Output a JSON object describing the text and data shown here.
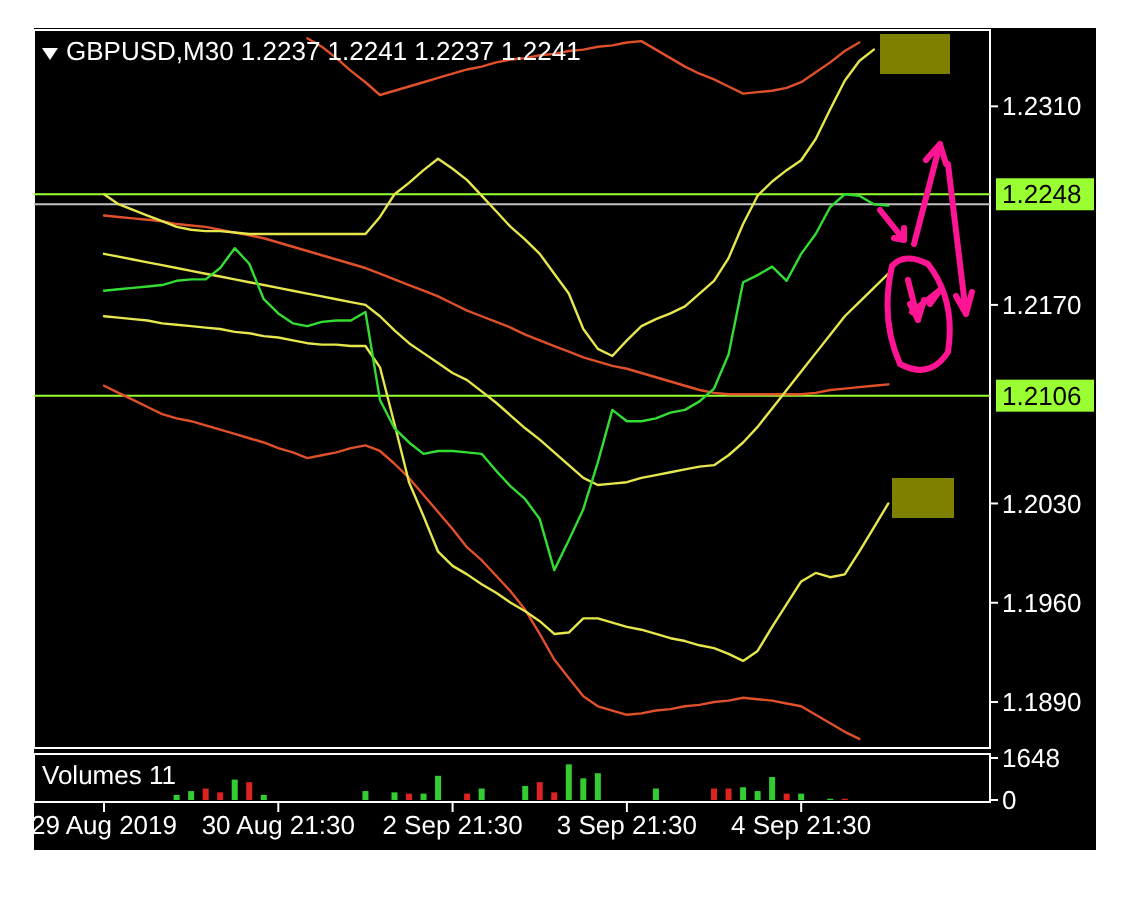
{
  "chart_data": [
    {
      "type": "line",
      "title": "GBPUSD,M30  1.2237 1.2241 1.2237 1.2241",
      "ylim": [
        1.1859,
        1.2361
      ],
      "tick_labels": "y",
      "categories": [
        null,
        null,
        null,
        null,
        null,
        null,
        null,
        null,
        null,
        null,
        null,
        null,
        null,
        null,
        null,
        null,
        null,
        null,
        null,
        null,
        null,
        null,
        null,
        null,
        null,
        null,
        null,
        null,
        null,
        null,
        null,
        null,
        null,
        null,
        null,
        null,
        null,
        null,
        null,
        null,
        null,
        null,
        null,
        null,
        null,
        null,
        null,
        null,
        null,
        null,
        null,
        null,
        null,
        null,
        null,
        null,
        null,
        null,
        null,
        null,
        null,
        null
      ],
      "yticks": [
        {
          "value": 1.231,
          "label": "1.2310"
        },
        {
          "value": 1.217,
          "label": "1.2170"
        },
        {
          "value": 1.203,
          "label": "1.2030"
        },
        {
          "value": 1.196,
          "label": "1.1960"
        },
        {
          "value": 1.189,
          "label": "1.1890"
        }
      ],
      "ref_lines": [
        {
          "axis": "y",
          "value": 1.2248,
          "label": "1.2248",
          "color": "#99ff33"
        },
        {
          "axis": "y",
          "value": 1.2106,
          "label": "1.2106",
          "color": "#99ff33"
        },
        {
          "axis": "y",
          "value": 1.2241,
          "label": null,
          "color": "#c0c0c0"
        }
      ],
      "series": [
        {
          "color": "#e0502a",
          "values": [
            null,
            null,
            null,
            null,
            null,
            null,
            null,
            null,
            null,
            null,
            null,
            null,
            null,
            null,
            1.2358,
            1.2352,
            1.2344,
            1.2335,
            1.2327,
            1.2318,
            1.2321,
            1.2324,
            1.2327,
            1.233,
            1.2333,
            1.2336,
            1.2338,
            1.2341,
            1.2343,
            1.2344,
            1.2346,
            1.2347,
            1.2349,
            1.235,
            1.2352,
            1.2353,
            1.2355,
            1.2356,
            1.235,
            1.2344,
            1.2338,
            1.2333,
            1.2329,
            1.2324,
            1.2319,
            1.232,
            1.2321,
            1.2323,
            1.2327,
            1.2334,
            1.2341,
            1.2349,
            1.2355,
            null,
            null,
            null,
            null,
            null,
            null,
            null,
            null,
            null
          ]
        },
        {
          "color": "#e0502a",
          "values": [
            1.2233,
            1.2232,
            1.2231,
            1.223,
            1.2229,
            1.2227,
            1.2226,
            1.2225,
            1.2223,
            1.2221,
            1.2219,
            1.2217,
            1.2214,
            1.2211,
            1.2208,
            1.2205,
            1.2202,
            1.2199,
            1.2196,
            1.2192,
            1.2188,
            1.2184,
            1.218,
            1.2176,
            1.2171,
            1.2166,
            1.2162,
            1.2158,
            1.2154,
            1.2149,
            1.2145,
            1.2141,
            1.2137,
            1.2133,
            1.213,
            1.2127,
            1.2125,
            1.2122,
            1.2119,
            1.2116,
            1.2113,
            1.211,
            1.2108,
            1.2107,
            1.2107,
            1.2107,
            1.2107,
            1.2107,
            1.2107,
            1.2108,
            1.211,
            1.2111,
            1.2112,
            1.2113,
            1.2114,
            null,
            null,
            null,
            null,
            null,
            null,
            null
          ]
        },
        {
          "color": "#e0502a",
          "values": [
            1.2113,
            1.2108,
            1.2103,
            1.2098,
            1.2093,
            1.209,
            1.2088,
            1.2085,
            1.2082,
            1.2079,
            1.2076,
            1.2073,
            1.2069,
            1.2066,
            1.2062,
            1.2064,
            1.2066,
            1.2069,
            1.2071,
            1.2067,
            1.2058,
            1.2048,
            1.2036,
            1.2024,
            1.2012,
            1.1999,
            1.199,
            1.1979,
            1.1968,
            1.1955,
            1.1938,
            1.192,
            1.1907,
            1.1894,
            1.1887,
            1.1884,
            1.1881,
            1.1882,
            1.1884,
            1.1885,
            1.1887,
            1.1888,
            1.189,
            1.1891,
            1.1893,
            1.1892,
            1.1891,
            1.1889,
            1.1887,
            1.1881,
            1.1875,
            1.1869,
            1.1864,
            null,
            null,
            null,
            null,
            null,
            null,
            null,
            null,
            null
          ]
        },
        {
          "color": "#e6e64d",
          "values": [
            1.2248,
            1.2241,
            1.2237,
            1.2233,
            1.2229,
            1.2225,
            1.2223,
            1.2222,
            1.2222,
            1.2221,
            1.222,
            1.222,
            1.222,
            1.222,
            1.222,
            1.222,
            1.222,
            1.222,
            1.222,
            1.2232,
            1.2248,
            1.2256,
            1.2265,
            1.2273,
            1.2266,
            1.2258,
            1.2247,
            1.2236,
            1.2225,
            1.2216,
            1.2206,
            1.2192,
            1.2178,
            1.2153,
            1.2139,
            1.2134,
            1.2145,
            1.2155,
            1.216,
            1.2164,
            1.2169,
            1.2178,
            1.2187,
            1.2203,
            1.2227,
            1.2247,
            1.2257,
            1.2265,
            1.2272,
            1.2287,
            1.2308,
            1.2328,
            1.2342,
            1.235,
            null,
            null,
            null,
            null,
            null,
            null,
            null,
            null
          ]
        },
        {
          "color": "#e6e64d",
          "values": [
            1.2206,
            1.2204,
            1.2202,
            1.22,
            1.2198,
            1.2196,
            1.2194,
            1.2192,
            1.219,
            1.2188,
            1.2186,
            1.2184,
            1.2182,
            1.218,
            1.2178,
            1.2176,
            1.2174,
            1.2172,
            1.217,
            1.2162,
            1.2152,
            1.2143,
            1.2136,
            1.2129,
            1.2122,
            1.2117,
            1.2109,
            1.2101,
            1.2092,
            1.2083,
            1.2075,
            1.2066,
            1.2057,
            1.2048,
            1.2043,
            1.2044,
            1.2045,
            1.2048,
            1.205,
            1.2052,
            1.2054,
            1.2056,
            1.2057,
            1.2064,
            1.2073,
            1.2084,
            1.2097,
            1.211,
            1.2123,
            1.2136,
            1.2149,
            1.2162,
            1.2172,
            1.2182,
            1.2192,
            null,
            null,
            null,
            null,
            null,
            null,
            null
          ]
        },
        {
          "color": "#e6e64d",
          "values": [
            1.2162,
            1.2161,
            1.216,
            1.2159,
            1.2157,
            1.2156,
            1.2155,
            1.2154,
            1.2153,
            1.2151,
            1.215,
            1.2148,
            1.2147,
            1.2145,
            1.2143,
            1.2142,
            1.2142,
            1.2141,
            1.2141,
            1.2126,
            1.2086,
            1.2045,
            1.2021,
            1.1996,
            1.1986,
            1.198,
            1.1973,
            1.1967,
            1.196,
            1.1954,
            1.1947,
            1.1938,
            1.1939,
            1.1949,
            1.1949,
            1.1946,
            1.1943,
            1.1941,
            1.1938,
            1.1935,
            1.1933,
            1.193,
            1.1928,
            1.1924,
            1.1919,
            1.1926,
            1.1943,
            1.1959,
            1.1975,
            1.1981,
            1.1978,
            1.198,
            1.1996,
            1.2013,
            1.203,
            null,
            null,
            null,
            null,
            null,
            null,
            null
          ]
        },
        {
          "color": "#33dd33",
          "values": [
            1.218,
            1.2181,
            1.2182,
            1.2183,
            1.2184,
            1.2187,
            1.2188,
            1.2188,
            1.2196,
            1.221,
            1.2199,
            1.2174,
            1.2164,
            1.2157,
            1.2155,
            1.2158,
            1.2159,
            1.2159,
            1.2165,
            1.2103,
            1.2083,
            1.2073,
            1.2065,
            1.2067,
            1.2067,
            1.2066,
            1.2065,
            1.2053,
            1.2042,
            1.2033,
            1.2019,
            1.1983,
            1.2004,
            1.2026,
            1.2059,
            1.2096,
            1.2088,
            1.2088,
            1.209,
            1.2094,
            1.2096,
            1.2102,
            1.2111,
            1.2135,
            1.2186,
            1.2191,
            1.2197,
            1.2187,
            1.2206,
            1.222,
            1.2239,
            1.2248,
            1.2247,
            1.2241,
            1.224,
            null,
            null,
            null,
            null,
            null,
            null,
            null
          ]
        }
      ]
    },
    {
      "type": "bar",
      "annotations": [
        "Volumes 11"
      ],
      "ylim": [
        0,
        1648
      ],
      "yticks": [
        0,
        1648
      ],
      "categories": [
        "29 Aug 2019",
        null,
        null,
        null,
        null,
        null,
        null,
        null,
        null,
        null,
        null,
        null,
        "30 Aug 21:30",
        null,
        null,
        null,
        null,
        null,
        null,
        null,
        null,
        null,
        null,
        null,
        "2 Sep 21:30",
        null,
        null,
        null,
        null,
        null,
        null,
        null,
        null,
        null,
        null,
        null,
        "3 Sep 21:30",
        null,
        null,
        null,
        null,
        null,
        null,
        null,
        null,
        null,
        null,
        null,
        "4 Sep 21:30",
        null,
        null,
        null,
        null,
        null,
        null,
        null,
        null,
        null,
        null,
        null,
        null,
        null
      ],
      "values": [
        null,
        null,
        null,
        null,
        null,
        200,
        350,
        450,
        300,
        800,
        700,
        200,
        null,
        null,
        null,
        null,
        null,
        null,
        350,
        null,
        300,
        250,
        250,
        950,
        null,
        250,
        450,
        null,
        null,
        550,
        700,
        300,
        1400,
        850,
        1050,
        null,
        null,
        null,
        450,
        null,
        null,
        null,
        450,
        450,
        500,
        350,
        900,
        250,
        250,
        null,
        50,
        50,
        null,
        null,
        null,
        null,
        null,
        null,
        null,
        null,
        null,
        null
      ],
      "colors": [
        null,
        null,
        null,
        null,
        null,
        "#33cc33",
        "#33cc33",
        "#dd2222",
        "#dd2222",
        "#33cc33",
        "#dd2222",
        "#33cc33",
        null,
        null,
        null,
        null,
        null,
        null,
        "#33cc33",
        null,
        "#33cc33",
        "#dd2222",
        "#33cc33",
        "#33cc33",
        null,
        "#dd2222",
        "#33cc33",
        null,
        null,
        "#33cc33",
        "#dd2222",
        "#dd2222",
        "#33cc33",
        "#33cc33",
        "#33cc33",
        null,
        null,
        null,
        "#33cc33",
        null,
        null,
        null,
        "#dd2222",
        "#dd2222",
        "#33cc33",
        "#33cc33",
        "#33cc33",
        "#dd2222",
        "#33cc33",
        null,
        "#33cc33",
        "#dd2222",
        null,
        null,
        null,
        null,
        null,
        null,
        null,
        null,
        null,
        null
      ]
    }
  ]
}
